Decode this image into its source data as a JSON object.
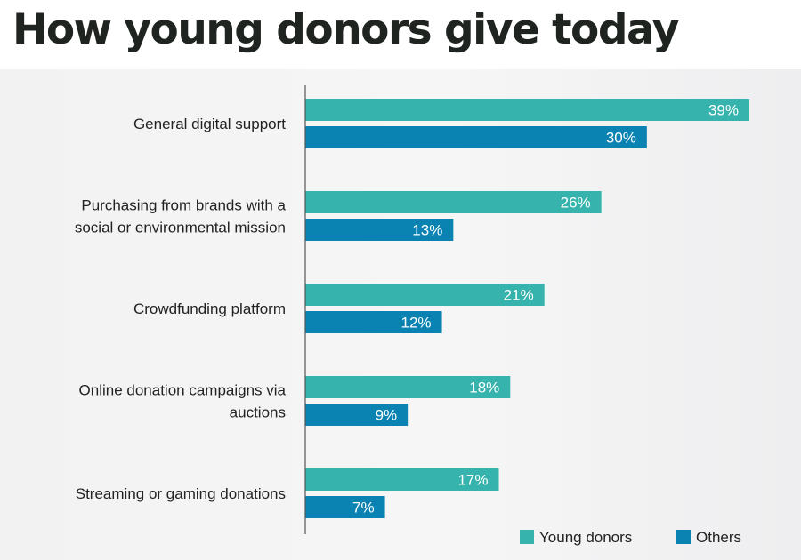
{
  "title": "How young donors give today",
  "colors": {
    "young": "#36b3ad",
    "others": "#0a83b2",
    "axis": "#555555"
  },
  "chart_data": {
    "type": "bar",
    "orientation": "horizontal",
    "title": "How young donors give today",
    "xlabel": "",
    "ylabel": "",
    "xlim": [
      0,
      39
    ],
    "grid": false,
    "legend": "bottom-right",
    "categories": [
      [
        "General digital support"
      ],
      [
        "Purchasing from brands with a",
        "social or environmental mission"
      ],
      [
        "Crowdfunding platform"
      ],
      [
        "Online donation campaigns via",
        "auctions"
      ],
      [
        "Streaming or gaming donations"
      ]
    ],
    "series": [
      {
        "name": "Young donors",
        "values": [
          39,
          26,
          21,
          18,
          17
        ],
        "labels": [
          "39%",
          "26%",
          "21%",
          "18%",
          "17%"
        ]
      },
      {
        "name": "Others",
        "values": [
          30,
          13,
          12,
          9,
          7
        ],
        "labels": [
          "30%",
          "13%",
          "12%",
          "9%",
          "7%"
        ]
      }
    ]
  }
}
